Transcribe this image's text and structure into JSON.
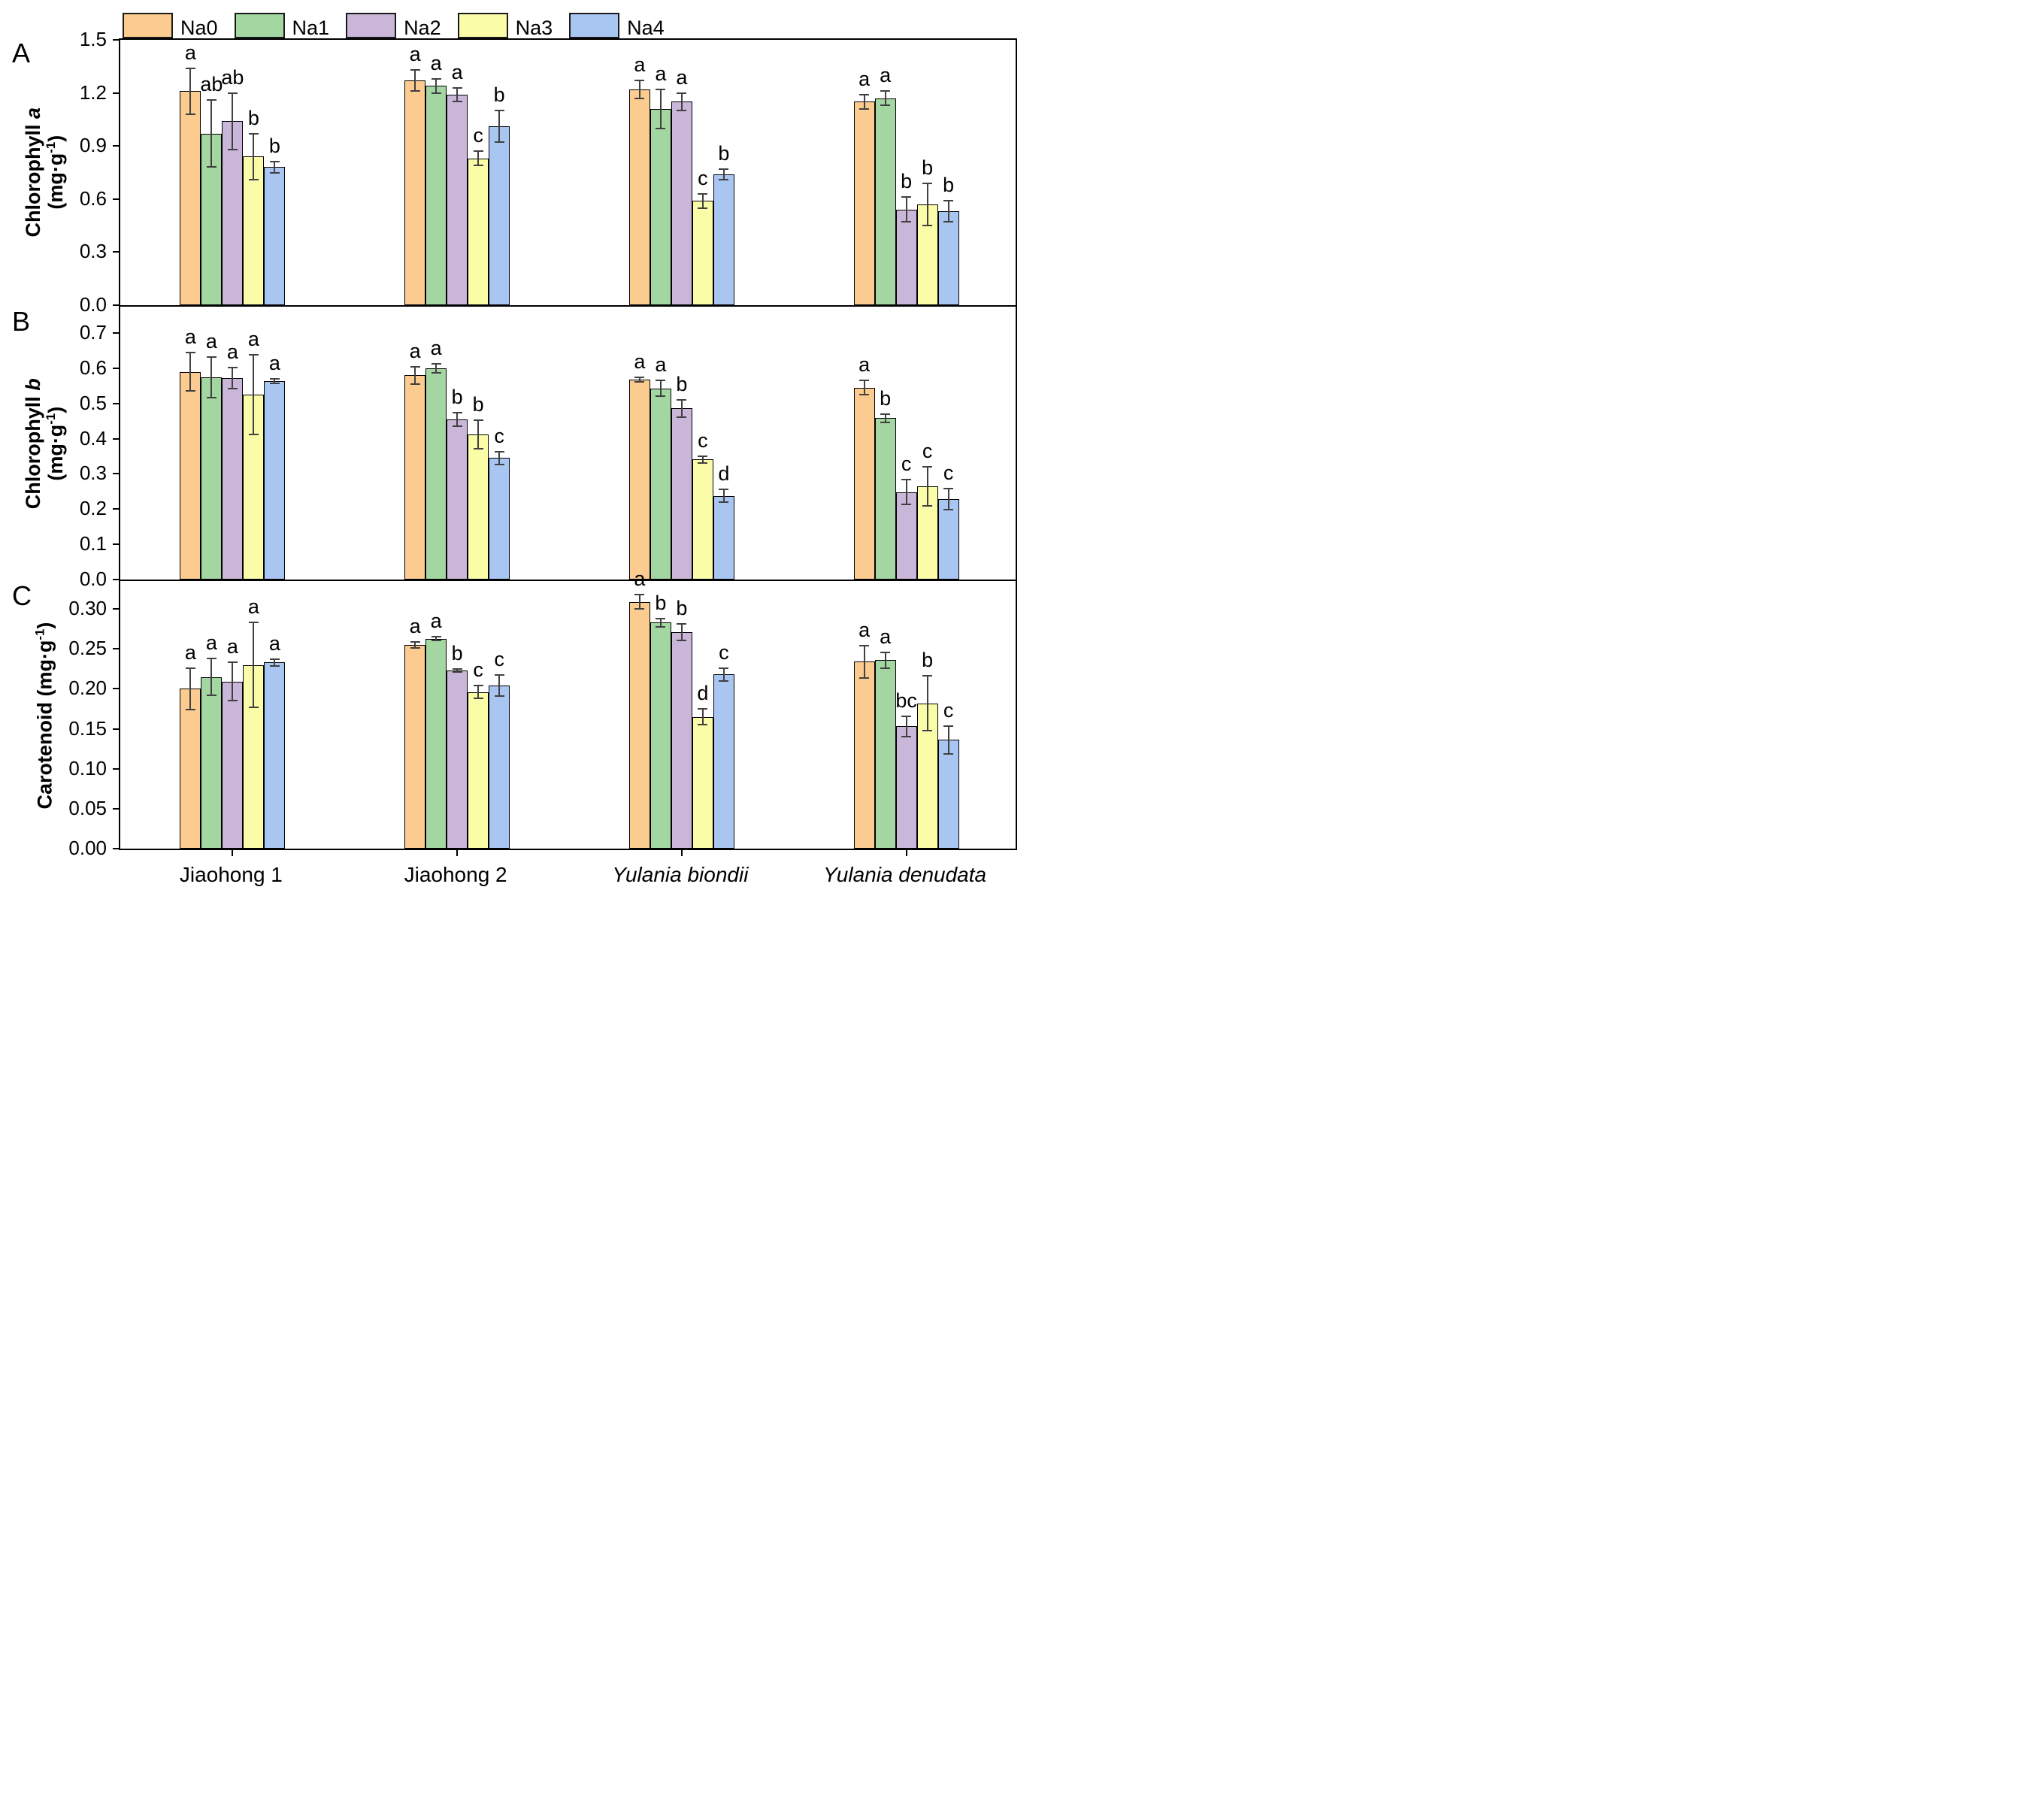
{
  "legend": {
    "items": [
      {
        "label": "Na0",
        "color": "#FBCB90"
      },
      {
        "label": "Na1",
        "color": "#A3D6A0"
      },
      {
        "label": "Na2",
        "color": "#C9B6D8"
      },
      {
        "label": "Na3",
        "color": "#FBFCA8"
      },
      {
        "label": "Na4",
        "color": "#A9C6F2"
      }
    ]
  },
  "colors": {
    "axis": "#000000",
    "error_bar": "#404040",
    "bar_border": "#000000"
  },
  "group_labels": [
    {
      "text": "Jiaohong 1",
      "italic": false
    },
    {
      "text": "Jiaohong 2",
      "italic": false
    },
    {
      "text": "Yulania biondii",
      "italic": true
    },
    {
      "text": "Yulania denudata",
      "italic": true
    }
  ],
  "chart_data": {
    "note": "see panels",
    "type": "bar"
  },
  "panels": [
    {
      "letter": "A",
      "type": "bar",
      "ylabel_text": "Chlorophyll a (mg·g-1)",
      "ylabel_lines": [
        [
          {
            "t": "Chlorophyll "
          },
          {
            "t": "a",
            "i": true
          }
        ],
        [
          {
            "t": "(mg·g"
          },
          {
            "t": "-1",
            "sup": true
          },
          {
            "t": ")"
          }
        ]
      ],
      "ylim": [
        0,
        1.5
      ],
      "ymax_draw": 1.5,
      "yticks": [
        {
          "v": 0.0,
          "label": "0.0"
        },
        {
          "v": 0.3,
          "label": "0.3"
        },
        {
          "v": 0.6,
          "label": "0.6"
        },
        {
          "v": 0.9,
          "label": "0.9"
        },
        {
          "v": 1.2,
          "label": "1.2"
        },
        {
          "v": 1.5,
          "label": "1.5"
        }
      ],
      "categories": [
        "Jiaohong 1",
        "Jiaohong 2",
        "Yulania biondii",
        "Yulania denudata"
      ],
      "series": [
        {
          "name": "Na0",
          "values": [
            1.21,
            1.27,
            1.22,
            1.15
          ],
          "errors": [
            0.13,
            0.06,
            0.05,
            0.04
          ],
          "letters": [
            "a",
            "a",
            "a",
            "a"
          ]
        },
        {
          "name": "Na1",
          "values": [
            0.97,
            1.24,
            1.11,
            1.17
          ],
          "errors": [
            0.19,
            0.04,
            0.11,
            0.04
          ],
          "letters": [
            "ab",
            "a",
            "a",
            "a"
          ]
        },
        {
          "name": "Na2",
          "values": [
            1.04,
            1.19,
            1.15,
            0.54
          ],
          "errors": [
            0.16,
            0.04,
            0.05,
            0.07
          ],
          "letters": [
            "ab",
            "a",
            "a",
            "b"
          ]
        },
        {
          "name": "Na3",
          "values": [
            0.84,
            0.83,
            0.59,
            0.57
          ],
          "errors": [
            0.13,
            0.04,
            0.04,
            0.12
          ],
          "letters": [
            "b",
            "c",
            "c",
            "b"
          ]
        },
        {
          "name": "Na4",
          "values": [
            0.78,
            1.01,
            0.74,
            0.53
          ],
          "errors": [
            0.03,
            0.09,
            0.03,
            0.06
          ],
          "letters": [
            "b",
            "b",
            "b",
            "b"
          ]
        }
      ]
    },
    {
      "letter": "B",
      "type": "bar",
      "ylabel_text": "Chlorophyll b (mg·g-1)",
      "ylabel_lines": [
        [
          {
            "t": "Chlorophyll "
          },
          {
            "t": "b",
            "i": true
          }
        ],
        [
          {
            "t": "(mg·g"
          },
          {
            "t": "-1",
            "sup": true
          },
          {
            "t": ")"
          }
        ]
      ],
      "ylim": [
        0,
        0.7
      ],
      "ymax_draw": 0.775,
      "yticks": [
        {
          "v": 0.0,
          "label": "0.0"
        },
        {
          "v": 0.1,
          "label": "0.1"
        },
        {
          "v": 0.2,
          "label": "0.2"
        },
        {
          "v": 0.3,
          "label": "0.3"
        },
        {
          "v": 0.4,
          "label": "0.4"
        },
        {
          "v": 0.5,
          "label": "0.5"
        },
        {
          "v": 0.6,
          "label": "0.6"
        },
        {
          "v": 0.7,
          "label": "0.7"
        }
      ],
      "categories": [
        "Jiaohong 1",
        "Jiaohong 2",
        "Yulania biondii",
        "Yulania denudata"
      ],
      "series": [
        {
          "name": "Na0",
          "values": [
            0.59,
            0.58,
            0.568,
            0.545
          ],
          "errors": [
            0.055,
            0.025,
            0.006,
            0.02
          ],
          "letters": [
            "a",
            "a",
            "a",
            "a"
          ]
        },
        {
          "name": "Na1",
          "values": [
            0.575,
            0.6,
            0.543,
            0.458
          ],
          "errors": [
            0.058,
            0.012,
            0.022,
            0.012
          ],
          "letters": [
            "a",
            "a",
            "a",
            "b"
          ]
        },
        {
          "name": "Na2",
          "values": [
            0.572,
            0.455,
            0.486,
            0.248
          ],
          "errors": [
            0.03,
            0.02,
            0.025,
            0.035
          ],
          "letters": [
            "a",
            "b",
            "b",
            "c"
          ]
        },
        {
          "name": "Na3",
          "values": [
            0.525,
            0.412,
            0.341,
            0.265
          ],
          "errors": [
            0.113,
            0.04,
            0.01,
            0.055
          ],
          "letters": [
            "a",
            "b",
            "c",
            "c"
          ]
        },
        {
          "name": "Na4",
          "values": [
            0.564,
            0.345,
            0.238,
            0.228
          ],
          "errors": [
            0.007,
            0.018,
            0.018,
            0.03
          ],
          "letters": [
            "a",
            "c",
            "d",
            "c"
          ]
        }
      ]
    },
    {
      "letter": "C",
      "type": "bar",
      "ylabel_text": "Carotenoid (mg·g-1)",
      "ylabel_lines": [
        [
          {
            "t": "Carotenoid (mg·g"
          },
          {
            "t": "-1",
            "sup": true
          },
          {
            "t": ")"
          }
        ]
      ],
      "ylim": [
        0,
        0.3
      ],
      "ymax_draw": 0.335,
      "yticks": [
        {
          "v": 0.0,
          "label": "0.00"
        },
        {
          "v": 0.05,
          "label": "0.05"
        },
        {
          "v": 0.1,
          "label": "0.10"
        },
        {
          "v": 0.15,
          "label": "0.15"
        },
        {
          "v": 0.2,
          "label": "0.20"
        },
        {
          "v": 0.25,
          "label": "0.25"
        },
        {
          "v": 0.3,
          "label": "0.30"
        }
      ],
      "categories": [
        "Jiaohong 1",
        "Jiaohong 2",
        "Yulania biondii",
        "Yulania denudata"
      ],
      "series": [
        {
          "name": "Na0",
          "values": [
            0.2,
            0.255,
            0.309,
            0.234
          ],
          "errors": [
            0.026,
            0.004,
            0.009,
            0.02
          ],
          "letters": [
            "a",
            "a",
            "a",
            "a"
          ]
        },
        {
          "name": "Na1",
          "values": [
            0.215,
            0.263,
            0.283,
            0.236
          ],
          "errors": [
            0.023,
            0.002,
            0.005,
            0.01
          ],
          "letters": [
            "a",
            "a",
            "b",
            "a"
          ]
        },
        {
          "name": "Na2",
          "values": [
            0.209,
            0.223,
            0.271,
            0.153
          ],
          "errors": [
            0.024,
            0.002,
            0.01,
            0.013
          ],
          "letters": [
            "a",
            "b",
            "b",
            "bc"
          ]
        },
        {
          "name": "Na3",
          "values": [
            0.23,
            0.196,
            0.165,
            0.182
          ],
          "errors": [
            0.053,
            0.008,
            0.01,
            0.034
          ],
          "letters": [
            "a",
            "c",
            "d",
            "b"
          ]
        },
        {
          "name": "Na4",
          "values": [
            0.233,
            0.204,
            0.218,
            0.136
          ],
          "errors": [
            0.004,
            0.013,
            0.008,
            0.017
          ],
          "letters": [
            "a",
            "c",
            "c",
            "c"
          ]
        }
      ]
    }
  ]
}
